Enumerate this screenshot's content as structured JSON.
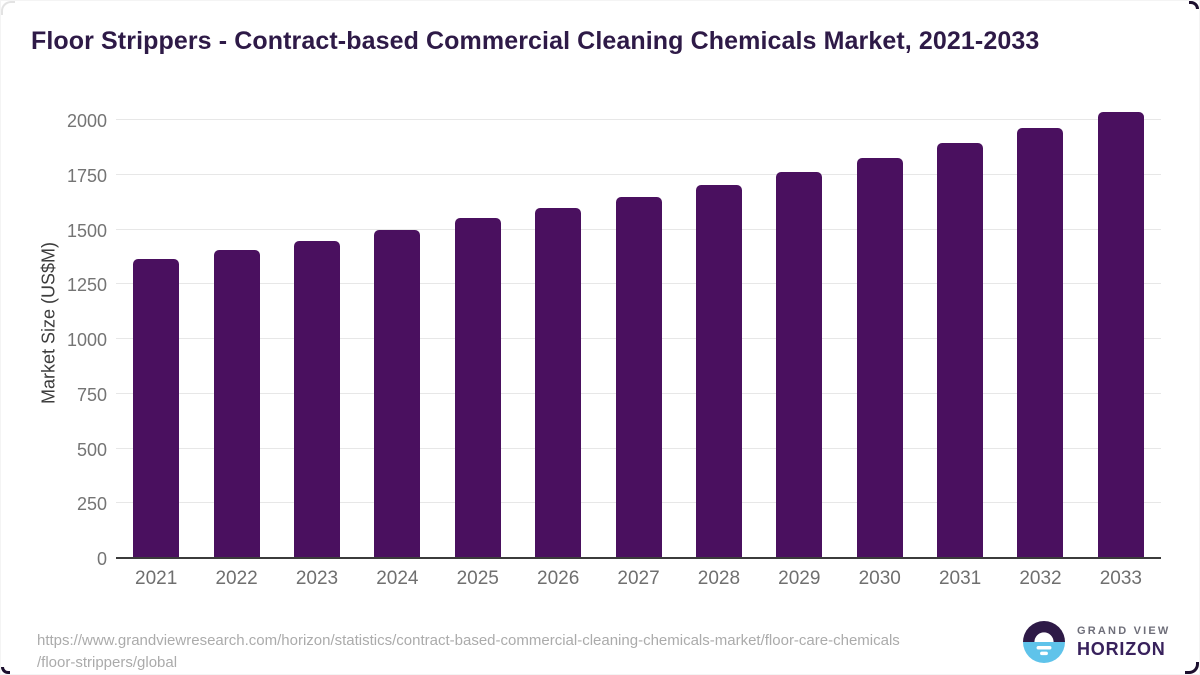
{
  "title": "Floor Strippers - Contract-based Commercial Cleaning Chemicals Market, 2021-2033",
  "chart_data": {
    "type": "bar",
    "title": "Floor Strippers - Contract-based Commercial Cleaning Chemicals Market, 2021-2033",
    "categories": [
      "2021",
      "2022",
      "2023",
      "2024",
      "2025",
      "2026",
      "2027",
      "2028",
      "2029",
      "2030",
      "2031",
      "2032",
      "2033"
    ],
    "values": [
      1360,
      1400,
      1445,
      1495,
      1548,
      1595,
      1645,
      1700,
      1758,
      1822,
      1890,
      1958,
      2031
    ],
    "xlabel": "",
    "ylabel": "Market Size (US$M)",
    "ylim": [
      0,
      2000
    ],
    "yticks": [
      0,
      250,
      500,
      750,
      1000,
      1250,
      1500,
      1750,
      2000
    ],
    "grid": true,
    "legend": false,
    "bar_color": "#4a105f"
  },
  "colors": {
    "bar": "#4a105f",
    "title_text": "#2e1a47",
    "tick_text": "#747474",
    "gridline": "#e7e7e7",
    "axis_line": "#3b3b3b",
    "url_text": "#ababab",
    "logo_purple": "#2e1a47",
    "logo_blue": "#5fc3ea",
    "logo_wordmark": "#38215c"
  },
  "footer": {
    "source_url_line1": "https://www.grandviewresearch.com/horizon/statistics/contract-based-commercial-cleaning-chemicals-market/floor-care-chemicals",
    "source_url_line2": "/floor-strippers/global",
    "logo": {
      "brand_top": "GRAND VIEW",
      "brand_bottom": "HORIZON"
    }
  }
}
